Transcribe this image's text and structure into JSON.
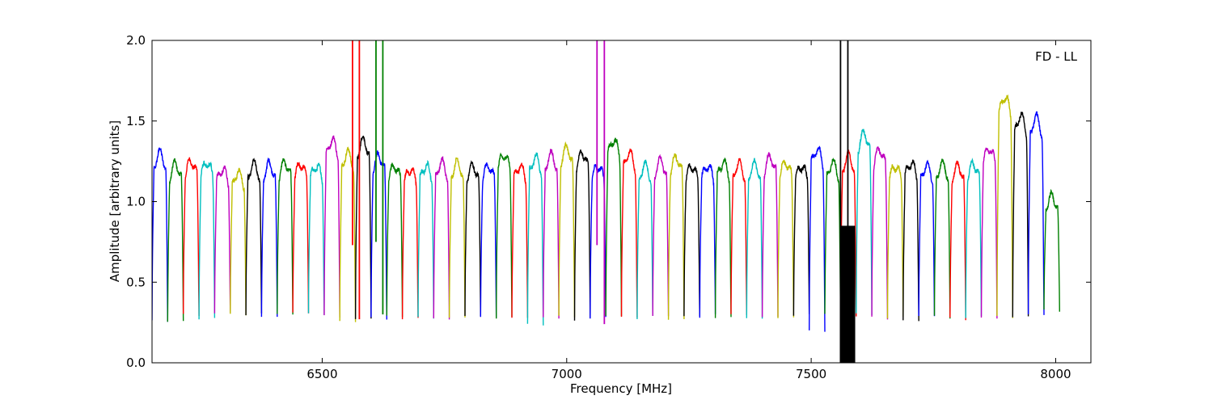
{
  "chart_data": {
    "type": "line",
    "title": "",
    "annotation": "FD - LL",
    "xlabel": "Frequency [MHz]",
    "ylabel": "Amplitude [arbitrary units]",
    "xlim": [
      6152,
      8072
    ],
    "ylim": [
      0.0,
      2.0
    ],
    "x_ticks": [
      6500,
      7000,
      7500,
      8000
    ],
    "y_ticks": [
      0.0,
      0.5,
      1.0,
      1.5,
      2.0
    ],
    "x_tick_labels": [
      "6500",
      "7000",
      "7500",
      "8000"
    ],
    "y_tick_labels": [
      "0.0",
      "0.5",
      "1.0",
      "1.5",
      "2.0"
    ],
    "grid": false,
    "legend": false,
    "subband_start": 6152,
    "subband_width": 32,
    "colors": [
      "#0000ff",
      "#008000",
      "#ff0000",
      "#00bfbf",
      "#bf00bf",
      "#bfbf00",
      "#000000"
    ],
    "subband_peaks": [
      1.3,
      1.23,
      1.25,
      1.24,
      1.2,
      1.18,
      1.23,
      1.23,
      1.24,
      1.23,
      1.22,
      1.38,
      1.3,
      1.38,
      1.28,
      1.22,
      1.2,
      1.22,
      1.24,
      1.24,
      1.22,
      1.22,
      1.29,
      1.22,
      1.27,
      1.29,
      1.33,
      1.3,
      1.22,
      1.38,
      1.3,
      1.22,
      1.25,
      1.27,
      1.22,
      1.22,
      1.24,
      1.23,
      1.23,
      1.27,
      1.24,
      1.22,
      1.32,
      1.24,
      1.28,
      1.42,
      1.32,
      1.22,
      1.24,
      1.22,
      1.23,
      1.22,
      1.23,
      1.33,
      1.65,
      1.53,
      1.52,
      1.03
    ],
    "subband_minima": [
      0.26,
      0.26,
      0.3,
      0.27,
      0.3,
      0.3,
      0.3,
      0.29,
      0.3,
      0.3,
      0.3,
      0.29,
      0.26,
      0.28,
      0.28,
      0.29,
      0.28,
      0.28,
      0.28,
      0.29,
      0.28,
      0.28,
      0.28,
      0.29,
      0.24,
      0.28,
      0.28,
      0.27,
      0.28,
      0.29,
      0.29,
      0.28,
      0.29,
      0.27,
      0.28,
      0.29,
      0.29,
      0.29,
      0.27,
      0.28,
      0.28,
      0.3,
      0.2,
      0.3,
      0.29,
      0.3,
      0.28,
      0.28,
      0.27,
      0.28,
      0.28,
      0.27,
      0.28,
      0.28,
      0.28,
      0.29,
      0.3,
      0.32
    ],
    "rfi_spikes": [
      {
        "x": 6562,
        "color": "#ff0000",
        "ymin": 0.73,
        "ymax": 2.0
      },
      {
        "x": 6576,
        "color": "#ff0000",
        "ymin": 0.27,
        "ymax": 2.0
      },
      {
        "x": 6610,
        "color": "#008000",
        "ymin": 0.75,
        "ymax": 2.0
      },
      {
        "x": 6624,
        "color": "#008000",
        "ymin": 0.3,
        "ymax": 2.0
      },
      {
        "x": 7062,
        "color": "#bf00bf",
        "ymin": 0.73,
        "ymax": 2.0
      },
      {
        "x": 7077,
        "color": "#bf00bf",
        "ymin": 0.24,
        "ymax": 2.0
      },
      {
        "x": 7560,
        "color": "#000000",
        "ymin": 0.0,
        "ymax": 2.0
      },
      {
        "x": 7575,
        "color": "#000000",
        "ymin": 0.0,
        "ymax": 2.0
      }
    ],
    "rfi_block": {
      "x0": 7560,
      "x1": 7590,
      "color": "#000000",
      "ymin": 0.0,
      "ymax": 0.85
    }
  }
}
